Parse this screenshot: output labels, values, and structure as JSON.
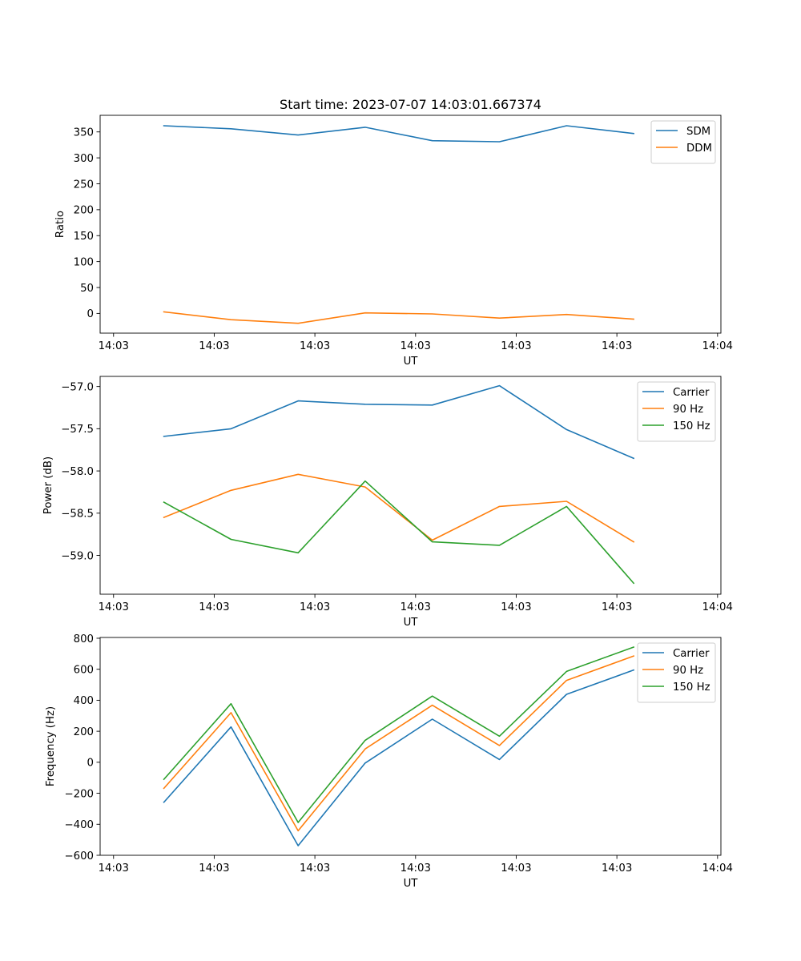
{
  "figure": {
    "title": "Start time: 2023-07-07 14:03:01.667374"
  },
  "chart_data": [
    {
      "type": "line",
      "title": "Start time: 2023-07-07 14:03:01.667374",
      "xlabel": "UT",
      "ylabel": "Ratio",
      "ylim": [
        -38,
        382
      ],
      "yticks": [
        0,
        50,
        100,
        150,
        200,
        250,
        300,
        350
      ],
      "xlim": [
        -0.2,
        9.05
      ],
      "xticks": [
        0,
        1.5,
        3,
        4.5,
        6,
        7.5,
        9
      ],
      "xtick_labels": [
        "14:03",
        "14:03",
        "14:03",
        "14:03",
        "14:03",
        "14:03",
        "14:04"
      ],
      "x": [
        0.75,
        1.75,
        2.75,
        3.75,
        4.75,
        5.75,
        6.75,
        7.75
      ],
      "legend_position": "top-right",
      "series": [
        {
          "name": "SDM",
          "color": "#1f77b4",
          "values": [
            362,
            356,
            344,
            359,
            333,
            331,
            362,
            347
          ]
        },
        {
          "name": "DDM",
          "color": "#ff7f0e",
          "values": [
            3,
            -12,
            -19,
            1,
            -1,
            -9,
            -2,
            -11
          ]
        }
      ]
    },
    {
      "type": "line",
      "title": "",
      "xlabel": "UT",
      "ylabel": "Power (dB)",
      "ylim": [
        -59.46,
        -56.88
      ],
      "yticks": [
        -59.0,
        -58.5,
        -58.0,
        -57.5,
        -57.0
      ],
      "ytick_labels": [
        "−59.0",
        "−58.5",
        "−58.0",
        "−57.5",
        "−57.0"
      ],
      "xlim": [
        -0.2,
        9.05
      ],
      "xticks": [
        0,
        1.5,
        3,
        4.5,
        6,
        7.5,
        9
      ],
      "xtick_labels": [
        "14:03",
        "14:03",
        "14:03",
        "14:03",
        "14:03",
        "14:03",
        "14:04"
      ],
      "x": [
        0.75,
        1.75,
        2.75,
        3.75,
        4.75,
        5.75,
        6.75,
        7.75
      ],
      "legend_position": "top-right",
      "series": [
        {
          "name": "Carrier",
          "color": "#1f77b4",
          "values": [
            -57.59,
            -57.5,
            -57.17,
            -57.21,
            -57.22,
            -56.99,
            -57.51,
            -57.85
          ]
        },
        {
          "name": "90 Hz",
          "color": "#ff7f0e",
          "values": [
            -58.55,
            -58.23,
            -58.04,
            -58.19,
            -58.82,
            -58.42,
            -58.36,
            -58.84
          ]
        },
        {
          "name": "150 Hz",
          "color": "#2ca02c",
          "values": [
            -58.37,
            -58.81,
            -58.97,
            -58.12,
            -58.84,
            -58.88,
            -58.42,
            -59.33
          ]
        }
      ]
    },
    {
      "type": "line",
      "title": "",
      "xlabel": "UT",
      "ylabel": "Frequency (Hz)",
      "ylim": [
        -600,
        805
      ],
      "yticks": [
        -600,
        -400,
        -200,
        0,
        200,
        400,
        600,
        800
      ],
      "ytick_labels": [
        "−600",
        "−400",
        "−200",
        "0",
        "200",
        "400",
        "600",
        "800"
      ],
      "xlim": [
        -0.2,
        9.05
      ],
      "xticks": [
        0,
        1.5,
        3,
        4.5,
        6,
        7.5,
        9
      ],
      "xtick_labels": [
        "14:03",
        "14:03",
        "14:03",
        "14:03",
        "14:03",
        "14:03",
        "14:04"
      ],
      "x": [
        0.75,
        1.75,
        2.75,
        3.75,
        4.75,
        5.75,
        6.75,
        7.75
      ],
      "legend_position": "top-right",
      "series": [
        {
          "name": "Carrier",
          "color": "#1f77b4",
          "values": [
            -258,
            228,
            -538,
            -5,
            278,
            18,
            438,
            595
          ]
        },
        {
          "name": "90 Hz",
          "color": "#ff7f0e",
          "values": [
            -168,
            320,
            -442,
            86,
            368,
            108,
            528,
            685
          ]
        },
        {
          "name": "150 Hz",
          "color": "#2ca02c",
          "values": [
            -110,
            378,
            -388,
            142,
            427,
            168,
            586,
            743
          ]
        }
      ]
    }
  ]
}
